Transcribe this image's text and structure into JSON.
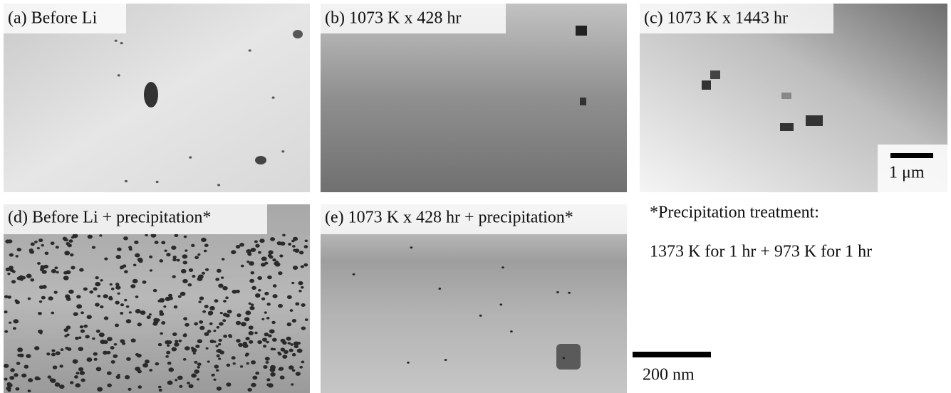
{
  "panels": [
    {
      "label": "(a) Before Li"
    },
    {
      "label": "(b) 1073 K x 428 hr"
    },
    {
      "label": "(c) 1073 K x 1443 hr",
      "scale_bar": "1 μm"
    },
    {
      "label": "(d) Before Li + precipitation*"
    },
    {
      "label": "(e) 1073 K x 428 hr + precipitation*"
    }
  ],
  "note": {
    "title": "*Precipitation treatment:",
    "text": "1373 K for 1 hr + 973 K for 1 hr"
  },
  "scale_bar": "200 nm"
}
